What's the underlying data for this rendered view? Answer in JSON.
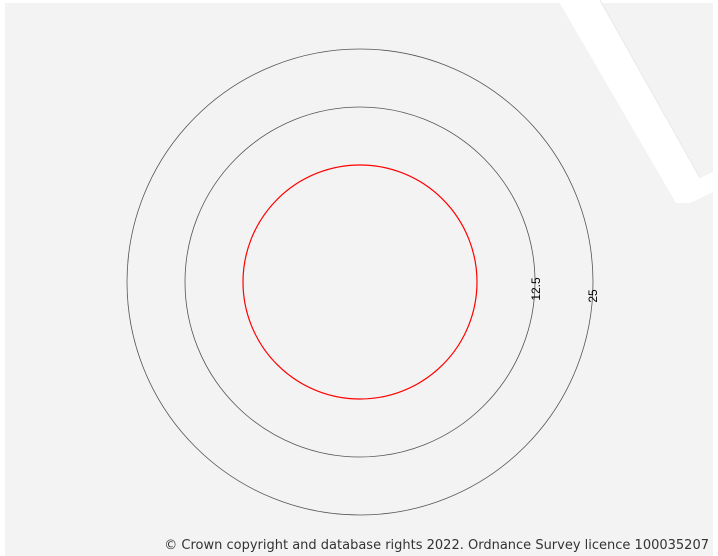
{
  "map": {
    "colors": {
      "background": "#f3f3f3",
      "road": "#ffffff",
      "site_boundary": "#ff0000",
      "buffer_ring": "#555555"
    },
    "buffer_rings": [
      {
        "label": "12.5"
      },
      {
        "label": "25"
      }
    ],
    "copyright": "© Crown copyright and database rights 2022. Ordnance Survey licence 100035207"
  }
}
